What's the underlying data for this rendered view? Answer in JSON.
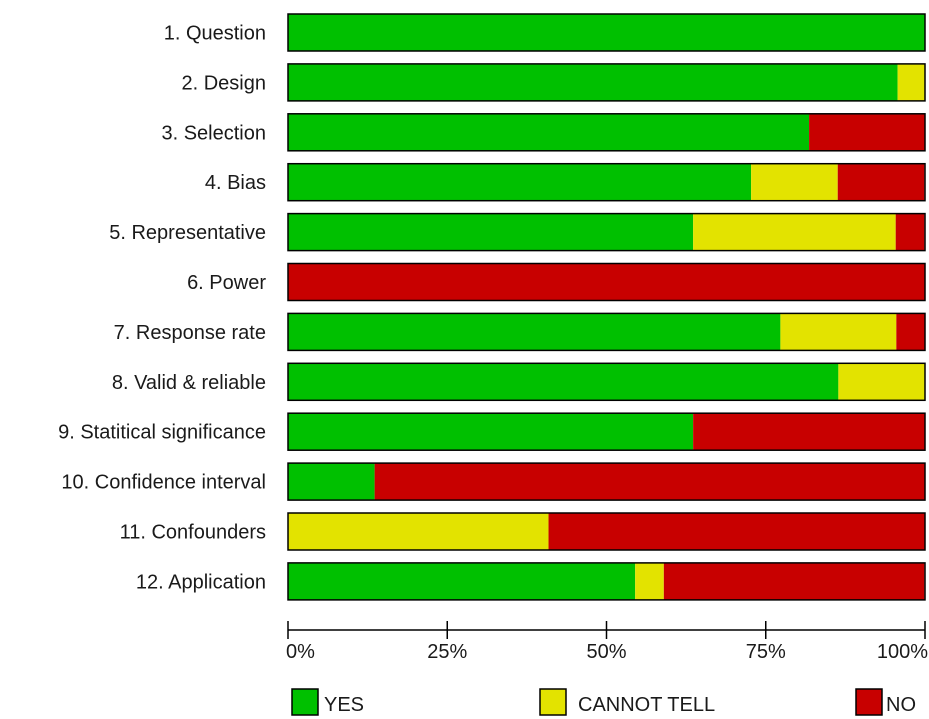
{
  "chart_data": {
    "type": "bar",
    "orientation": "horizontal",
    "stacked": true,
    "categories": [
      "1. Question",
      "2. Design",
      "3. Selection",
      "4. Bias",
      "5. Representative",
      "6. Power",
      "7. Response rate",
      "8. Valid & reliable",
      "9. Statitical significance",
      "10. Confidence interval",
      "11. Confounders",
      "12. Application"
    ],
    "series": [
      {
        "name": "YES",
        "color": "#00c000",
        "values": [
          100,
          95.7,
          81.8,
          72.7,
          63.6,
          0,
          77.3,
          86.4,
          63.6,
          13.6,
          0,
          54.5
        ]
      },
      {
        "name": "CANNOT TELL",
        "color": "#e3e300",
        "values": [
          0,
          4.3,
          0,
          13.6,
          31.8,
          0,
          18.2,
          13.6,
          0,
          0,
          40.9,
          4.5
        ]
      },
      {
        "name": "NO",
        "color": "#c80000",
        "values": [
          0,
          0,
          18.2,
          13.6,
          4.5,
          100,
          4.5,
          0,
          36.4,
          86.4,
          59.1,
          40.9
        ]
      }
    ],
    "x_ticks": [
      "0%",
      "25%",
      "50%",
      "75%",
      "100%"
    ],
    "xlim": [
      0,
      100
    ],
    "grid": false,
    "legend_position": "bottom"
  }
}
